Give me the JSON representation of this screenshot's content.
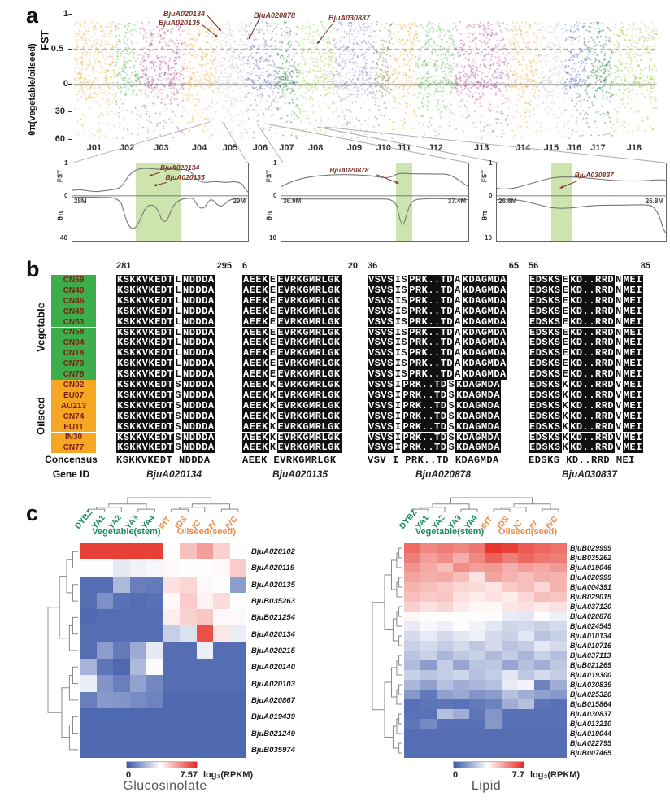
{
  "figure_labels": {
    "a": "a",
    "b": "b",
    "c": "c"
  },
  "panel_a": {
    "y_axis": {
      "fst_label": "FST",
      "theta_label": "θπ(vegetable/oilseed)",
      "ticks": [
        "1",
        "0.5",
        "0",
        "30",
        "60"
      ]
    },
    "chromosomes": [
      {
        "name": "J01",
        "color": "#EAA636",
        "rel_width": 46
      },
      {
        "name": "J02",
        "color": "#55B04B",
        "rel_width": 28
      },
      {
        "name": "J03",
        "color": "#A8468E",
        "rel_width": 50
      },
      {
        "name": "J04",
        "color": "#EAA636",
        "rel_width": 36
      },
      {
        "name": "J05",
        "color": "#BCBEC1",
        "rel_width": 34
      },
      {
        "name": "J06",
        "color": "#5E6CB2",
        "rel_width": 34
      },
      {
        "name": "J07",
        "color": "#156D39",
        "rel_width": 26
      },
      {
        "name": "J08",
        "color": "#97C83D",
        "rel_width": 40
      },
      {
        "name": "J09",
        "color": "#7B80C4",
        "rel_width": 48
      },
      {
        "name": "J10",
        "color": "#6F7030",
        "rel_width": 18
      },
      {
        "name": "J11",
        "color": "#EAA636",
        "rel_width": 28
      },
      {
        "name": "J12",
        "color": "#55B04B",
        "rel_width": 44
      },
      {
        "name": "J13",
        "color": "#A8468E",
        "rel_width": 60
      },
      {
        "name": "J14",
        "color": "#EAA636",
        "rel_width": 34
      },
      {
        "name": "J15",
        "color": "#BCBEC1",
        "rel_width": 30
      },
      {
        "name": "J16",
        "color": "#4D5FB3",
        "rel_width": 22
      },
      {
        "name": "J17",
        "color": "#156D39",
        "rel_width": 32
      },
      {
        "name": "J18",
        "color": "#97C83D",
        "rel_width": 50
      }
    ],
    "annotations": [
      "BjuA020134",
      "BjuA020135",
      "BjuA020878",
      "BjuA030837"
    ],
    "insets": [
      {
        "genes": [
          "BjuA020134",
          "BjuA020135"
        ],
        "x_left": "28M",
        "x_right": "29M",
        "top_tick": "1",
        "mid_tick": "0",
        "bottom_tick": "40",
        "fst_label": "FST",
        "theta_label": "θπ"
      },
      {
        "genes": [
          "BjuA020878"
        ],
        "x_left": "36.9M",
        "x_right": "37.4M",
        "top_tick": "1",
        "mid_tick": "0",
        "bottom_tick": "10",
        "fst_label": "FST",
        "theta_label": "θπ"
      },
      {
        "genes": [
          "BjuA030837"
        ],
        "x_left": "26.6M",
        "x_right": "26.8M",
        "top_tick": "1",
        "mid_tick": "0",
        "bottom_tick": "10",
        "fst_label": "FST",
        "theta_label": "θπ"
      }
    ]
  },
  "panel_b": {
    "groups": [
      {
        "name": "Vegetable",
        "color": "#3DAE49",
        "samples": [
          "CN59",
          "CN40",
          "CN46",
          "CN48",
          "CN53",
          "CN58",
          "CN04",
          "CN18",
          "CN79",
          "CN78"
        ]
      },
      {
        "name": "Oilseed",
        "color": "#F5A623",
        "samples": [
          "CN02",
          "EU07",
          "AU213",
          "CN74",
          "EU11",
          "IN30",
          "CN77"
        ]
      }
    ],
    "consensus_label": "Concensus",
    "gene_id_label": "Gene ID",
    "blocks": [
      {
        "pos_start": "281",
        "pos_end": "295",
        "gene": "BjuA020134",
        "segments": [
          "KSKKVKEDT",
          "NDDDA"
        ],
        "var_veg": [
          "L"
        ],
        "var_oil": [
          "S"
        ],
        "consensus": "KSKKVKEDT NDDDA"
      },
      {
        "pos_start": "6",
        "pos_end": "20",
        "gene": "BjuA020135",
        "segments": [
          "AEEK",
          "EVRKGMRLGK"
        ],
        "var_veg": [
          "E"
        ],
        "var_oil": [
          "K"
        ],
        "consensus": "AEEK EVRKGMRLGK"
      },
      {
        "pos_start": "36",
        "pos_end": "65",
        "gene": "BjuA020878",
        "segments": [
          "VSVS",
          "PRK..TD",
          "KDAGMDA"
        ],
        "var_veg": [
          "IS",
          "A"
        ],
        "var_oil": [
          "I",
          "S"
        ],
        "consensus": "VSV I PRK..TD KDAGMDA"
      },
      {
        "pos_start": "56",
        "pos_end": "85",
        "gene": "BjuA030837",
        "segments": [
          "EDSKS",
          "KD..RRD",
          "MEI"
        ],
        "var_veg": [
          "E",
          "N"
        ],
        "var_oil": [
          "K",
          "V"
        ],
        "consensus": "EDSKS KD..RRD MEI"
      }
    ]
  },
  "panel_c": {
    "column_labels": [
      "DYBZ",
      "YA1",
      "YA2",
      "YA3",
      "YA4",
      "IHT",
      "IDS",
      "IC",
      "IV",
      "IVC"
    ],
    "group_headers": [
      {
        "label": "Vegetable(stem)",
        "color": "#1B8A60"
      },
      {
        "label": "Oilseed(seed)",
        "color": "#E98C4A"
      }
    ],
    "column_label_colors": {
      "vegetable": "#1B8A60",
      "oilseed": "#E98C4A"
    }
  },
  "chart_data": [
    {
      "type": "scatter",
      "title": "Genome-wide FST and θπ(vegetable/oilseed) by chromosome",
      "x_categories": [
        "J01",
        "J02",
        "J03",
        "J04",
        "J05",
        "J06",
        "J07",
        "J08",
        "J09",
        "J10",
        "J11",
        "J12",
        "J13",
        "J14",
        "J15",
        "J16",
        "J17",
        "J18"
      ],
      "y_top_label": "FST",
      "y_top_range": [
        0,
        1
      ],
      "fst_threshold": 0.5,
      "y_bottom_label": "θπ(vegetable/oilseed)",
      "y_bottom_range": [
        0,
        60
      ],
      "highlighted_genes": [
        "BjuA020134",
        "BjuA020135",
        "BjuA020878",
        "BjuA030837"
      ]
    },
    {
      "type": "heatmap",
      "title": "Glucosinolate",
      "columns": [
        "DYBZ",
        "YA1",
        "YA2",
        "YA3",
        "YA4",
        "IHT",
        "IDS",
        "IC",
        "IV",
        "IVC"
      ],
      "column_groups": [
        {
          "label": "Vegetable(stem)",
          "cols": [
            0,
            4
          ]
        },
        {
          "label": "Oilseed(seed)",
          "cols": [
            5,
            9
          ]
        }
      ],
      "rows": [
        "BjuA020102",
        "BjuA020119",
        "BjuA020135",
        "BjuB035263",
        "BjuB021254",
        "BjuA020134",
        "BjuA020215",
        "BjuA020140",
        "BjuA020103",
        "BjuA020867",
        "BjuA019439",
        "BjuB021249",
        "BjuB035974"
      ],
      "values": [
        [
          7.2,
          7.2,
          7.2,
          7.2,
          7.2,
          3.8,
          4.9,
          5.5,
          4.6,
          3.8
        ],
        [
          3.8,
          3.8,
          3.3,
          3.5,
          3.6,
          3.9,
          3.8,
          3.8,
          3.9,
          4.7
        ],
        [
          0.5,
          0.5,
          2.2,
          0.9,
          0.8,
          4.3,
          4.5,
          3.9,
          3.8,
          1.6
        ],
        [
          0.5,
          1.3,
          0.6,
          0.5,
          0.6,
          3.9,
          4.7,
          4.0,
          4.4,
          3.8
        ],
        [
          0.4,
          0.5,
          0.5,
          0.5,
          0.5,
          4.1,
          4.6,
          4.8,
          3.9,
          3.9
        ],
        [
          0.5,
          0.5,
          0.5,
          0.5,
          0.5,
          2.7,
          3.1,
          6.9,
          4.2,
          3.4
        ],
        [
          0.5,
          1.6,
          0.8,
          1.9,
          3.3,
          0.5,
          0.5,
          3.4,
          0.5,
          0.5
        ],
        [
          2.1,
          0.7,
          0.4,
          2.2,
          3.7,
          0.5,
          0.5,
          0.5,
          0.5,
          0.5
        ],
        [
          3.4,
          1.4,
          0.9,
          1.7,
          1.1,
          0.5,
          0.5,
          0.5,
          0.5,
          0.5
        ],
        [
          0.9,
          1.5,
          1.4,
          1.2,
          1.0,
          0.4,
          0.4,
          0.4,
          0.4,
          0.4
        ],
        [
          0.4,
          0.4,
          0.4,
          0.4,
          0.4,
          0.4,
          0.4,
          0.4,
          0.4,
          0.4
        ],
        [
          0.4,
          0.4,
          0.4,
          0.4,
          0.4,
          0.4,
          0.4,
          0.4,
          0.4,
          0.4
        ],
        [
          0.4,
          0.4,
          0.4,
          0.4,
          0.4,
          0.4,
          0.4,
          0.4,
          0.4,
          0.4
        ]
      ],
      "scale": {
        "min": 0,
        "max": 7.57,
        "unit": "log₂(RPKM)"
      },
      "scale_min_label": "0",
      "scale_max_label": "7.57",
      "scale_unit": "log₂(RPKM)",
      "colormap": {
        "low": "#3A57A8",
        "mid": "#FFFFFF",
        "high": "#E52A20"
      }
    },
    {
      "type": "heatmap",
      "title": "Lipid",
      "columns": [
        "DYBZ",
        "YA1",
        "YA2",
        "YA3",
        "YA4",
        "IHT",
        "IDS",
        "IC",
        "IV",
        "IVC"
      ],
      "column_groups": [
        {
          "label": "Vegetable(stem)",
          "cols": [
            0,
            4
          ]
        },
        {
          "label": "Oilseed(seed)",
          "cols": [
            5,
            9
          ]
        }
      ],
      "rows": [
        "BjuB029999",
        "BjuB035262",
        "BjuA019046",
        "BjuA020999",
        "BjuA004391",
        "BjuB029015",
        "BjuA037120",
        "BjuA020878",
        "BjuA024545",
        "BjuA010134",
        "BjuA010716",
        "BjuA037113",
        "BjuB021269",
        "BjuA019300",
        "BjuA030839",
        "BjuA025320",
        "BjuB015864",
        "BjuA030837",
        "BjuA013210",
        "BjuA019044",
        "BjuA022795",
        "BjuB007465"
      ],
      "values": [
        [
          6.5,
          6.0,
          6.2,
          6.0,
          6.3,
          7.5,
          7.3,
          6.8,
          6.6,
          6.4
        ],
        [
          6.2,
          5.6,
          5.9,
          5.3,
          6.0,
          6.7,
          6.2,
          6.6,
          6.3,
          6.2
        ],
        [
          5.8,
          5.4,
          5.0,
          5.9,
          5.6,
          5.7,
          5.3,
          5.6,
          5.4,
          5.7
        ],
        [
          5.5,
          5.3,
          5.4,
          5.0,
          4.4,
          5.5,
          5.2,
          5.0,
          5.3,
          5.2
        ],
        [
          5.2,
          5.0,
          4.8,
          4.6,
          4.5,
          4.3,
          4.8,
          5.0,
          4.6,
          5.2
        ],
        [
          5.0,
          4.8,
          4.9,
          4.4,
          4.2,
          4.4,
          4.2,
          4.6,
          5.0,
          4.9
        ],
        [
          4.7,
          4.4,
          4.6,
          4.2,
          4.0,
          4.0,
          4.3,
          4.4,
          4.2,
          4.4
        ],
        [
          4.0,
          3.9,
          3.9,
          3.9,
          3.8,
          3.9,
          3.4,
          3.3,
          3.9,
          3.5
        ],
        [
          3.4,
          3.7,
          3.5,
          3.9,
          3.6,
          3.3,
          2.9,
          3.0,
          2.8,
          3.0
        ],
        [
          3.0,
          3.4,
          3.0,
          3.3,
          3.5,
          3.0,
          2.8,
          3.3,
          2.5,
          2.8
        ],
        [
          2.8,
          3.0,
          2.7,
          3.0,
          2.6,
          3.0,
          2.5,
          2.7,
          3.3,
          3.0
        ],
        [
          2.5,
          2.8,
          2.2,
          2.6,
          2.8,
          2.3,
          2.7,
          2.2,
          2.8,
          2.4
        ],
        [
          2.3,
          1.6,
          2.7,
          1.8,
          2.5,
          2.6,
          1.8,
          2.4,
          2.0,
          2.6
        ],
        [
          2.8,
          2.5,
          2.7,
          2.9,
          2.4,
          2.7,
          3.3,
          2.6,
          3.0,
          2.7
        ],
        [
          2.2,
          1.7,
          2.4,
          2.0,
          2.2,
          2.4,
          3.4,
          3.6,
          1.0,
          2.0
        ],
        [
          1.5,
          0.8,
          1.7,
          1.9,
          1.4,
          1.6,
          2.4,
          2.0,
          1.7,
          1.5
        ],
        [
          0.6,
          0.7,
          0.7,
          0.6,
          0.8,
          1.0,
          2.0,
          2.4,
          0.7,
          0.6
        ],
        [
          0.6,
          0.6,
          2.4,
          2.0,
          0.7,
          1.4,
          0.6,
          0.6,
          0.6,
          0.6
        ],
        [
          0.7,
          1.2,
          0.6,
          0.6,
          0.6,
          1.5,
          0.6,
          0.6,
          0.6,
          0.6
        ],
        [
          0.5,
          0.5,
          0.5,
          0.5,
          0.5,
          0.5,
          0.5,
          0.5,
          0.5,
          0.5
        ],
        [
          0.5,
          0.5,
          0.5,
          0.5,
          0.5,
          0.5,
          0.5,
          0.5,
          0.5,
          0.5
        ],
        [
          0.5,
          0.5,
          0.5,
          0.5,
          0.5,
          0.5,
          0.5,
          0.5,
          0.5,
          0.5
        ]
      ],
      "scale": {
        "min": 0,
        "max": 7.7,
        "unit": "log₂(RPKM)"
      },
      "scale_min_label": "0",
      "scale_max_label": "7.7",
      "scale_unit": "log₂(RPKM)",
      "colormap": {
        "low": "#3A57A8",
        "mid": "#FFFFFF",
        "high": "#E52A20"
      }
    }
  ]
}
